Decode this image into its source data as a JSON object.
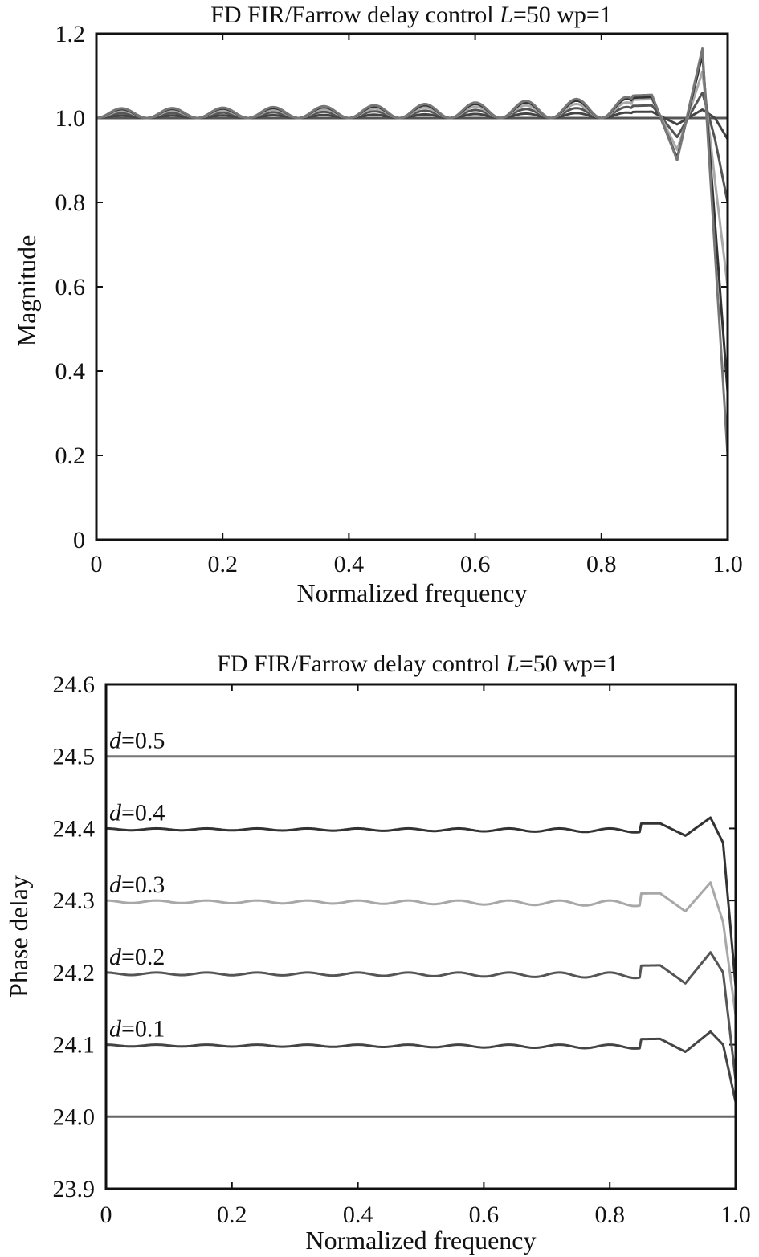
{
  "chart_data": [
    {
      "type": "line",
      "title_prefix": "FD FIR/Farrow delay control ",
      "title_var": "L",
      "title_suffix": "=50 wp=1",
      "xlabel": "Normalized frequency",
      "ylabel": "Magnitude",
      "xlim": [
        0,
        1
      ],
      "ylim": [
        0,
        1.2
      ],
      "xticks": [
        "0",
        "0.2",
        "0.4",
        "0.6",
        "0.8",
        "1.0"
      ],
      "yticks": [
        "0",
        "0.2",
        "0.4",
        "0.6",
        "0.8",
        "1.0",
        "1.2"
      ],
      "grid": false,
      "legend": "none",
      "series": [
        {
          "d": 0.0,
          "color": "#555555",
          "ripple": 0.0,
          "x": [
            0,
            1
          ],
          "y": [
            1.0,
            1.0
          ]
        },
        {
          "d": 0.1,
          "color": "#444444",
          "ripple": 0.006,
          "x": [
            0,
            0.88,
            0.92,
            0.96,
            0.98,
            1.0
          ],
          "y": [
            1.0,
            1.015,
            0.985,
            1.02,
            1.0,
            0.95
          ]
        },
        {
          "d": 0.2,
          "color": "#555555",
          "ripple": 0.012,
          "x": [
            0,
            0.88,
            0.92,
            0.96,
            0.98,
            1.0
          ],
          "y": [
            1.0,
            1.03,
            0.955,
            1.06,
            0.95,
            0.8
          ]
        },
        {
          "d": 0.3,
          "color": "#a8a8a8",
          "ripple": 0.017,
          "x": [
            0,
            0.88,
            0.92,
            0.96,
            0.98,
            1.0
          ],
          "y": [
            1.0,
            1.045,
            0.925,
            1.11,
            0.85,
            0.6
          ]
        },
        {
          "d": 0.4,
          "color": "#333333",
          "ripple": 0.021,
          "x": [
            0,
            0.88,
            0.92,
            0.96,
            0.98,
            1.0
          ],
          "y": [
            1.0,
            1.05,
            0.905,
            1.15,
            0.75,
            0.35
          ]
        },
        {
          "d": 0.5,
          "color": "#777777",
          "ripple": 0.023,
          "x": [
            0,
            0.88,
            0.92,
            0.96,
            0.98,
            1.0
          ],
          "y": [
            1.0,
            1.055,
            0.9,
            1.165,
            0.68,
            0.2
          ]
        }
      ]
    },
    {
      "type": "line",
      "title_prefix": "FD FIR/Farrow delay control ",
      "title_var": "L",
      "title_suffix": "=50 wp=1",
      "xlabel": "Normalized frequency",
      "ylabel": "Phase delay",
      "xlim": [
        0,
        1
      ],
      "ylim": [
        23.9,
        24.6
      ],
      "xticks": [
        "0",
        "0.2",
        "0.4",
        "0.6",
        "0.8",
        "1.0"
      ],
      "yticks": [
        "23.9",
        "24.0",
        "24.1",
        "24.2",
        "24.3",
        "24.4",
        "24.5",
        "24.6"
      ],
      "grid": false,
      "legend": "none",
      "label_var": "d",
      "series": [
        {
          "d": 0.0,
          "label": "",
          "color": "#666666",
          "ripple": 0.0,
          "x": [
            0,
            1
          ],
          "y": [
            24.0,
            24.0
          ]
        },
        {
          "d": 0.1,
          "label": "=0.1",
          "color": "#444444",
          "ripple": 0.0025,
          "x": [
            0,
            0.88,
            0.92,
            0.96,
            0.98,
            1.0
          ],
          "y": [
            24.1,
            24.108,
            24.09,
            24.118,
            24.1,
            24.02
          ]
        },
        {
          "d": 0.2,
          "label": "=0.2",
          "color": "#555555",
          "ripple": 0.0035,
          "x": [
            0,
            0.88,
            0.92,
            0.96,
            0.98,
            1.0
          ],
          "y": [
            24.2,
            24.21,
            24.185,
            24.228,
            24.2,
            24.05
          ]
        },
        {
          "d": 0.3,
          "label": "=0.3",
          "color": "#a8a8a8",
          "ripple": 0.0035,
          "x": [
            0,
            0.88,
            0.92,
            0.96,
            0.98,
            1.0
          ],
          "y": [
            24.3,
            24.31,
            24.285,
            24.325,
            24.27,
            24.14
          ]
        },
        {
          "d": 0.4,
          "label": "=0.4",
          "color": "#333333",
          "ripple": 0.0025,
          "x": [
            0,
            0.88,
            0.92,
            0.96,
            0.98,
            1.0
          ],
          "y": [
            24.4,
            24.407,
            24.39,
            24.415,
            24.38,
            24.18
          ]
        },
        {
          "d": 0.5,
          "label": "=0.5",
          "color": "#777777",
          "ripple": 0.0,
          "x": [
            0,
            1
          ],
          "y": [
            24.5,
            24.5
          ]
        }
      ]
    }
  ]
}
